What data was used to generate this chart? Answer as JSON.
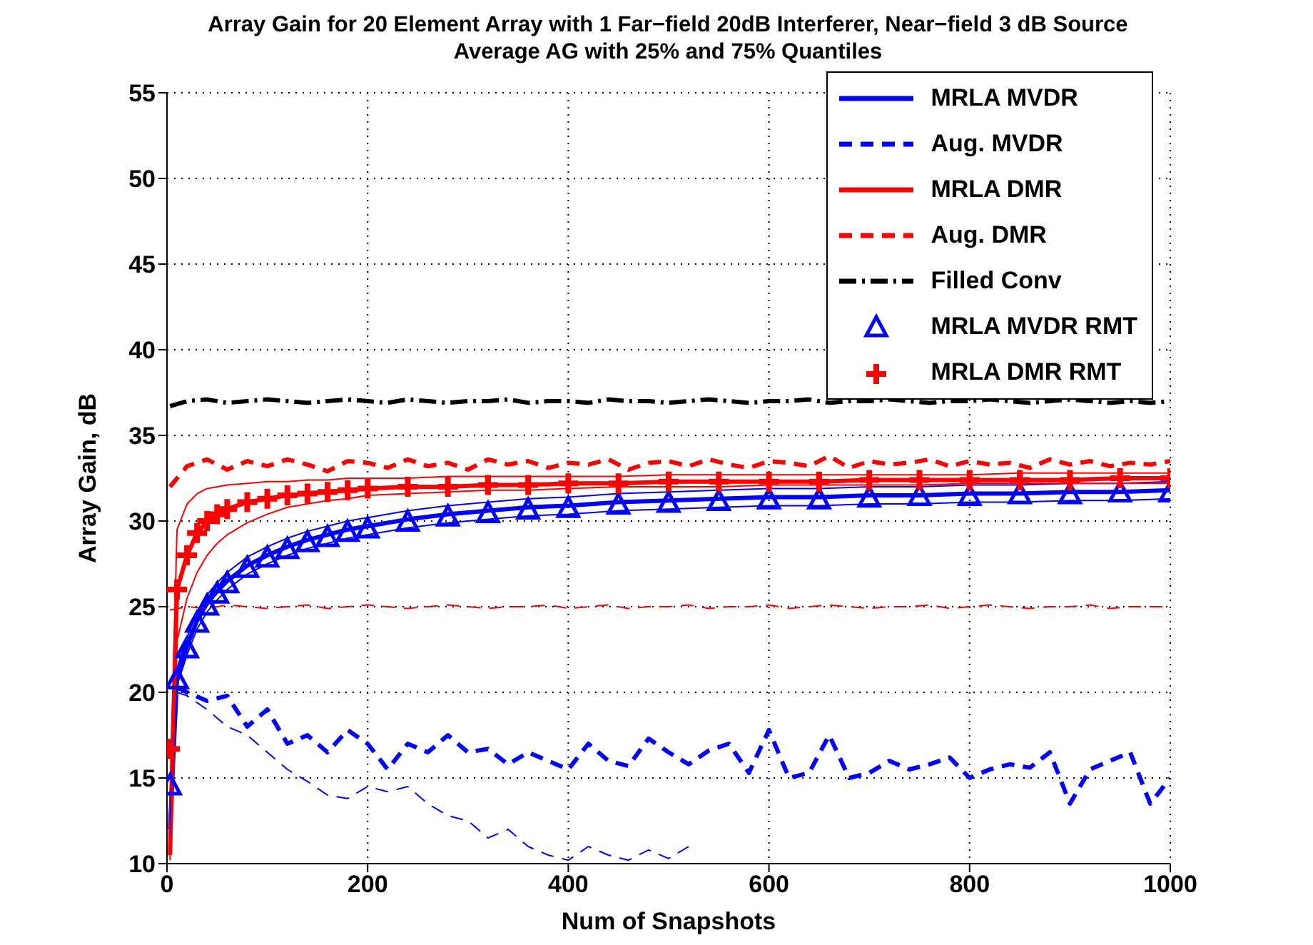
{
  "chart_data": {
    "type": "line",
    "title": "Array Gain for 20 Element Array with 1 Far−field 20dB Interferer, Near−field 3 dB Source",
    "subtitle": "Average AG with 25% and 75% Quantiles",
    "xlabel": "Num of Snapshots",
    "ylabel": "Array Gain, dB",
    "xlim": [
      0,
      1000
    ],
    "xticks": [
      0,
      200,
      400,
      600,
      800,
      1000
    ],
    "ylim": [
      10,
      55
    ],
    "yticks": [
      10,
      15,
      20,
      25,
      30,
      35,
      40,
      45,
      50,
      55
    ],
    "grid": true,
    "legend": "top right",
    "series": [
      {
        "name": "MRLA MVDR",
        "color": "#0000ff",
        "line_style": "solid",
        "marker": "none",
        "x": [
          3,
          10,
          20,
          30,
          40,
          50,
          60,
          80,
          100,
          120,
          140,
          160,
          180,
          200,
          240,
          280,
          320,
          360,
          400,
          450,
          500,
          550,
          600,
          650,
          700,
          750,
          800,
          850,
          900,
          950,
          1000
        ],
        "values": [
          12,
          20.9,
          22.7,
          24.2,
          25.2,
          25.9,
          26.5,
          27.4,
          28.0,
          28.5,
          28.9,
          29.2,
          29.5,
          29.7,
          30.1,
          30.4,
          30.6,
          30.8,
          30.9,
          31.1,
          31.2,
          31.3,
          31.4,
          31.4,
          31.5,
          31.5,
          31.6,
          31.6,
          31.7,
          31.7,
          31.8
        ]
      },
      {
        "name": "Aug. MVDR",
        "color": "#0000ff",
        "line_style": "dashed",
        "marker": "none",
        "x": [
          10,
          20,
          40,
          60,
          80,
          100,
          120,
          140,
          160,
          180,
          200,
          220,
          240,
          260,
          280,
          300,
          320,
          340,
          360,
          380,
          400,
          420,
          440,
          460,
          480,
          500,
          520,
          540,
          560,
          580,
          600,
          620,
          640,
          660,
          680,
          700,
          720,
          740,
          760,
          780,
          800,
          820,
          840,
          860,
          880,
          900,
          920,
          940,
          960,
          980,
          1000
        ],
        "values": [
          20.3,
          20,
          19.5,
          19.8,
          18,
          19,
          17,
          17.5,
          16.5,
          17.8,
          17,
          15.5,
          17,
          16.5,
          17.5,
          16.5,
          16.7,
          15.8,
          16.5,
          16,
          15.5,
          17,
          16,
          15.7,
          17.3,
          16.5,
          15.8,
          16.6,
          17,
          15.3,
          17.8,
          15,
          15.3,
          17.5,
          15,
          15.3,
          16,
          15.5,
          15.8,
          16.2,
          15,
          15.5,
          15.8,
          15.6,
          16.5,
          13.5,
          15.5,
          16,
          16.5,
          13.5,
          15
        ]
      },
      {
        "name": "MRLA DMR",
        "color": "#ff0000",
        "line_style": "solid",
        "marker": "none",
        "x": [
          3,
          10,
          20,
          30,
          40,
          50,
          60,
          80,
          100,
          120,
          140,
          160,
          180,
          200,
          240,
          280,
          320,
          360,
          400,
          450,
          500,
          550,
          600,
          650,
          700,
          750,
          800,
          850,
          900,
          950,
          1000
        ],
        "values": [
          10.5,
          26,
          28,
          29.3,
          30,
          30.4,
          30.7,
          31.1,
          31.3,
          31.5,
          31.6,
          31.7,
          31.8,
          31.9,
          32.0,
          32.0,
          32.1,
          32.1,
          32.2,
          32.2,
          32.3,
          32.3,
          32.3,
          32.3,
          32.4,
          32.4,
          32.4,
          32.4,
          32.4,
          32.5,
          32.5
        ]
      },
      {
        "name": "Aug. DMR",
        "color": "#ff0000",
        "line_style": "dashed",
        "marker": "none",
        "x": [
          3,
          20,
          40,
          60,
          80,
          100,
          120,
          140,
          160,
          180,
          200,
          220,
          240,
          260,
          280,
          300,
          320,
          340,
          360,
          380,
          400,
          420,
          440,
          460,
          480,
          500,
          520,
          540,
          560,
          580,
          600,
          620,
          640,
          660,
          680,
          700,
          720,
          740,
          760,
          780,
          800,
          820,
          840,
          860,
          880,
          900,
          920,
          940,
          960,
          980,
          1000
        ],
        "values": [
          32,
          33.2,
          33.6,
          33.0,
          33.5,
          33.2,
          33.6,
          33.3,
          32.9,
          33.5,
          33.4,
          33.1,
          33.6,
          33.2,
          33.4,
          33.0,
          33.6,
          33.3,
          33.5,
          33.1,
          33.4,
          33.3,
          33.6,
          33.0,
          33.4,
          33.5,
          33.2,
          33.6,
          33.3,
          33.1,
          33.5,
          33.4,
          33.2,
          33.8,
          33.1,
          33.5,
          33.3,
          33.4,
          33.6,
          33.2,
          33.5,
          33.3,
          33.4,
          33.1,
          33.6,
          33.3,
          33.5,
          33.2,
          33.4,
          33.3,
          33.5
        ]
      },
      {
        "name": "Filled Conv",
        "color": "#000000",
        "line_style": "dashdot",
        "marker": "none",
        "x": [
          3,
          20,
          40,
          60,
          80,
          100,
          120,
          140,
          160,
          180,
          200,
          220,
          240,
          260,
          280,
          300,
          320,
          340,
          360,
          380,
          400,
          420,
          440,
          460,
          480,
          500,
          520,
          540,
          560,
          580,
          600,
          620,
          640,
          660,
          680,
          700,
          720,
          740,
          760,
          780,
          800,
          820,
          840,
          860,
          880,
          900,
          920,
          940,
          960,
          980,
          1000
        ],
        "values": [
          36.7,
          37.0,
          37.1,
          36.9,
          37.0,
          37.1,
          37.0,
          36.9,
          37.0,
          37.1,
          37.0,
          36.9,
          37.1,
          37.0,
          36.9,
          37.0,
          37.0,
          37.1,
          36.9,
          37.0,
          37.0,
          36.9,
          37.1,
          37.0,
          37.0,
          36.9,
          37.0,
          37.1,
          37.0,
          36.9,
          37.0,
          37.0,
          37.1,
          36.9,
          37.0,
          37.0,
          37.1,
          37.0,
          36.9,
          37.0,
          37.0,
          37.1,
          37.0,
          36.9,
          37.0,
          37.1,
          37.0,
          36.9,
          37.0,
          36.9,
          37.0
        ]
      },
      {
        "color": "#0000ff",
        "line_style": "solid",
        "marker": "none",
        "x": [
          3,
          10,
          20,
          30,
          40,
          50,
          60,
          80,
          100,
          120,
          140,
          160,
          180,
          200,
          240,
          280,
          320,
          360,
          400,
          450,
          500,
          550,
          600,
          650,
          700,
          750,
          800,
          850,
          900,
          950,
          1000
        ],
        "values": [
          12.5,
          21.4,
          23.2,
          24.7,
          25.7,
          26.4,
          27.0,
          27.9,
          28.5,
          29.0,
          29.4,
          29.7,
          30.0,
          30.2,
          30.6,
          30.9,
          31.1,
          31.3,
          31.4,
          31.6,
          31.7,
          31.8,
          31.9,
          31.9,
          32.0,
          32.0,
          32.1,
          32.1,
          32.2,
          32.2,
          32.3
        ]
      },
      {
        "color": "#0000ff",
        "line_style": "solid",
        "marker": "none",
        "x": [
          3,
          10,
          20,
          30,
          40,
          50,
          60,
          80,
          100,
          120,
          140,
          160,
          180,
          200,
          240,
          280,
          320,
          360,
          400,
          450,
          500,
          550,
          600,
          650,
          700,
          750,
          800,
          850,
          900,
          950,
          1000
        ],
        "values": [
          11.5,
          20.4,
          22.2,
          23.7,
          24.7,
          25.4,
          26.0,
          26.9,
          27.5,
          28.0,
          28.4,
          28.7,
          29.0,
          29.2,
          29.6,
          29.9,
          30.1,
          30.3,
          30.4,
          30.6,
          30.7,
          30.8,
          30.9,
          30.9,
          31.0,
          31.0,
          31.1,
          31.1,
          31.2,
          31.2,
          31.3
        ]
      },
      {
        "color": "#0000ff",
        "line_style": "dashed",
        "marker": "none",
        "x": [
          10,
          20,
          40,
          60,
          80,
          100,
          120,
          140,
          160,
          180,
          200,
          220,
          240,
          260,
          280,
          300,
          320,
          340,
          360,
          380,
          400,
          420,
          440,
          460,
          480,
          500,
          520
        ],
        "values": [
          20,
          19.8,
          19,
          18,
          17.5,
          16.5,
          15.5,
          14.8,
          14,
          13.8,
          14.5,
          14.2,
          14.5,
          13.5,
          12.8,
          12.5,
          11.5,
          12,
          11,
          10.5,
          10.2,
          11,
          10.5,
          10.2,
          10.8,
          10.3,
          11
        ]
      },
      {
        "color": "#ff0000",
        "line_style": "solid",
        "marker": "none",
        "x": [
          3,
          10,
          20,
          30,
          40,
          50,
          60,
          80,
          100,
          120,
          140,
          160,
          180,
          200,
          240,
          280,
          320,
          360,
          400,
          450,
          500,
          550,
          600,
          650,
          700,
          750,
          800,
          850,
          900,
          950,
          1000
        ],
        "values": [
          14,
          29.5,
          31,
          31.6,
          31.9,
          32.0,
          32.1,
          32.2,
          32.3,
          32.3,
          32.4,
          32.4,
          32.5,
          32.5,
          32.5,
          32.6,
          32.6,
          32.6,
          32.6,
          32.6,
          32.7,
          32.7,
          32.7,
          32.7,
          32.7,
          32.7,
          32.7,
          32.8,
          32.8,
          32.8,
          32.8
        ]
      },
      {
        "color": "#ff0000",
        "line_style": "solid",
        "marker": "none",
        "x": [
          3,
          10,
          20,
          30,
          40,
          50,
          60,
          80,
          100,
          120,
          140,
          160,
          180,
          200,
          240,
          280,
          320,
          360,
          400,
          450,
          500,
          550,
          600,
          650,
          700,
          750,
          800,
          850,
          900,
          950,
          1000
        ],
        "values": [
          10.2,
          23,
          25.5,
          27,
          28,
          28.7,
          29.2,
          29.9,
          30.4,
          30.8,
          31.0,
          31.2,
          31.3,
          31.5,
          31.6,
          31.7,
          31.8,
          31.8,
          31.9,
          32.0,
          32.0,
          32.0,
          32.1,
          32.1,
          32.1,
          32.1,
          32.2,
          32.2,
          32.2,
          32.2,
          32.2
        ]
      },
      {
        "color": "#ff0000",
        "line_style": "dashed",
        "marker": "none",
        "x": [
          3,
          20,
          40,
          60,
          80,
          100,
          120,
          140,
          160,
          180,
          200,
          220,
          240,
          260,
          280,
          300,
          320,
          340,
          360,
          380,
          400,
          420,
          440,
          460,
          480,
          500,
          520,
          540,
          560,
          580,
          600,
          620,
          640,
          660,
          680,
          700,
          720,
          740,
          760,
          780,
          800,
          820,
          840,
          860,
          880,
          900,
          920,
          940,
          960,
          980,
          1000
        ],
        "values": [
          24.8,
          25.0,
          24.9,
          25.1,
          25.0,
          24.9,
          25.0,
          25.1,
          24.9,
          25.0,
          25.1,
          25.0,
          24.9,
          25.0,
          25.1,
          25.0,
          24.9,
          25.0,
          25.0,
          25.1,
          24.9,
          25.0,
          25.1,
          24.9,
          25.0,
          25.0,
          25.1,
          24.9,
          25.0,
          25.0,
          25.1,
          24.9,
          25.0,
          25.1,
          25.0,
          24.9,
          25.0,
          25.0,
          25.1,
          24.9,
          25.0,
          25.1,
          25.0,
          24.9,
          25.0,
          25.0,
          25.1,
          24.9,
          25.0,
          25.0,
          25.0
        ]
      },
      {
        "name": "MRLA MVDR RMT",
        "type": "scatter",
        "color": "#0000ff",
        "marker": "triangle",
        "x": [
          3,
          10,
          20,
          30,
          40,
          50,
          60,
          80,
          100,
          120,
          140,
          160,
          180,
          200,
          240,
          280,
          320,
          360,
          400,
          450,
          500,
          550,
          600,
          650,
          700,
          750,
          800,
          850,
          900,
          950,
          1000
        ],
        "values": [
          14.5,
          20.7,
          22.5,
          24,
          25,
          25.7,
          26.3,
          27.2,
          27.8,
          28.3,
          28.7,
          29.0,
          29.3,
          29.5,
          29.9,
          30.2,
          30.4,
          30.6,
          30.7,
          30.9,
          31.0,
          31.1,
          31.2,
          31.2,
          31.3,
          31.4,
          31.4,
          31.5,
          31.5,
          31.6,
          31.6
        ]
      },
      {
        "name": "MRLA DMR RMT",
        "type": "scatter",
        "color": "#ff0000",
        "marker": "cross",
        "x": [
          3,
          10,
          20,
          30,
          40,
          50,
          60,
          80,
          100,
          120,
          140,
          160,
          180,
          200,
          240,
          280,
          320,
          360,
          400,
          450,
          500,
          550,
          600,
          650,
          700,
          750,
          800,
          850,
          900,
          950,
          1000
        ],
        "values": [
          16.7,
          26,
          28,
          29.3,
          30,
          30.4,
          30.7,
          31.1,
          31.3,
          31.5,
          31.6,
          31.7,
          31.8,
          31.9,
          32.0,
          32.0,
          32.1,
          32.1,
          32.2,
          32.2,
          32.3,
          32.3,
          32.3,
          32.3,
          32.4,
          32.4,
          32.4,
          32.4,
          32.4,
          32.5,
          32.5
        ]
      }
    ]
  }
}
